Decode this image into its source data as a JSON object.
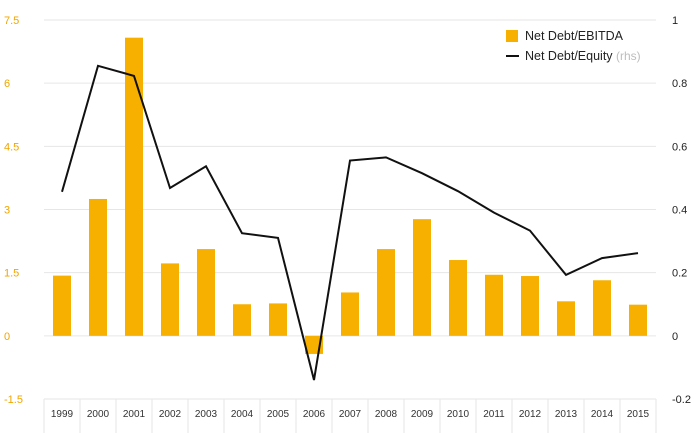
{
  "chart_data": {
    "type": "bar",
    "categories": [
      "1999",
      "2000",
      "2001",
      "2002",
      "2003",
      "2004",
      "2005",
      "2006",
      "2007",
      "2008",
      "2009",
      "2010",
      "2011",
      "2012",
      "2013",
      "2014",
      "2015"
    ],
    "series": [
      {
        "name": "Net Debt/EBITDA",
        "type": "bar",
        "axis": "left",
        "color": "#f7b000",
        "values": [
          1.43,
          3.25,
          7.08,
          1.72,
          2.06,
          0.75,
          0.77,
          -0.43,
          1.03,
          2.06,
          2.77,
          1.8,
          1.45,
          1.42,
          0.82,
          1.32,
          0.74
        ]
      },
      {
        "name": "Net Debt/Equity",
        "type": "line",
        "axis": "right",
        "color": "#111111",
        "values": [
          0.456,
          0.855,
          0.823,
          0.468,
          0.537,
          0.325,
          0.31,
          -0.14,
          0.555,
          0.565,
          0.515,
          0.458,
          0.39,
          0.333,
          0.193,
          0.246,
          0.262
        ]
      }
    ],
    "legend_note": "(rhs)",
    "left_axis": {
      "ylim": [
        -1.5,
        7.5
      ],
      "ticks": [
        7.5,
        6,
        4.5,
        3,
        1.5,
        0,
        -1.5
      ],
      "tick_labels": [
        "7.5",
        "6",
        "4.5",
        "3",
        "1.5",
        "0",
        "-1.5"
      ],
      "color": "#f0a500"
    },
    "right_axis": {
      "ylim": [
        -0.2,
        1
      ],
      "ticks": [
        1,
        0.8,
        0.6,
        0.4,
        0.2,
        0,
        -0.2
      ],
      "tick_labels": [
        "1",
        "0.8",
        "0.6",
        "0.4",
        "0.2",
        "0",
        "-0.2"
      ],
      "color": "#222222"
    },
    "grid": true,
    "legend_position": "top-right",
    "title": "",
    "xlabel": "",
    "ylabel": ""
  }
}
